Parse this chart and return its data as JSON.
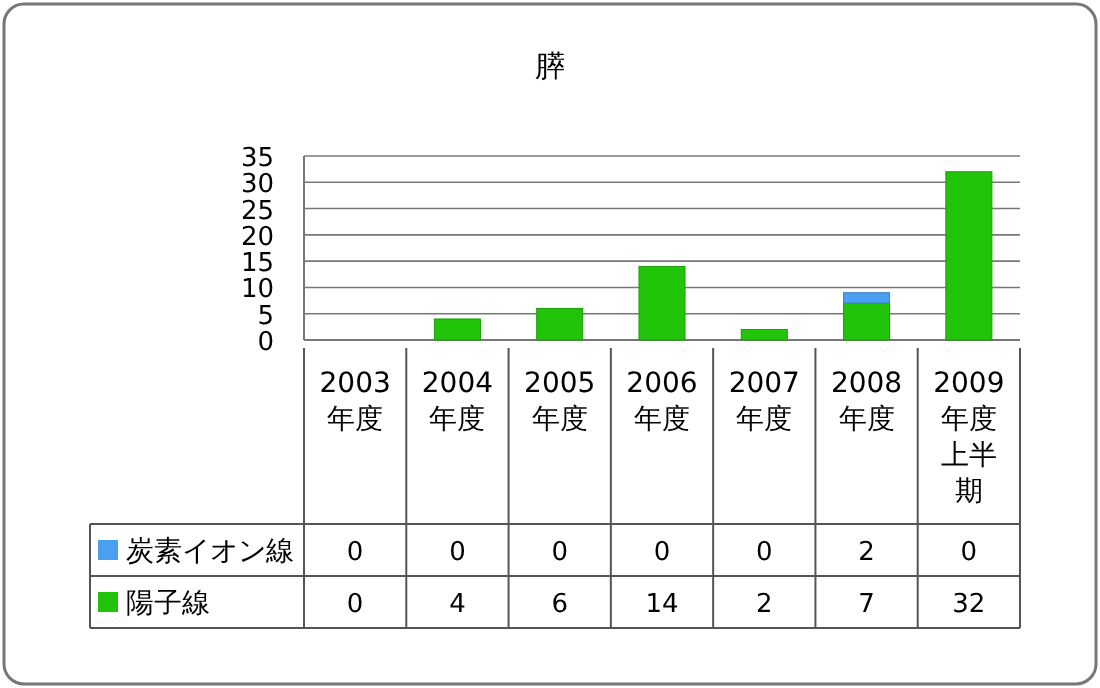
{
  "chart_data": {
    "type": "bar",
    "title": "膵",
    "stacked": true,
    "data_labels": true,
    "grid": "y",
    "legend": "bottom left",
    "categories": [
      "2003年度",
      "2004年度",
      "2005年度",
      "2006年度",
      "2007年度",
      "2008年度",
      "2009年度上半期"
    ],
    "ylim": [
      0,
      35
    ],
    "yticks": [
      0,
      5,
      10,
      15,
      20,
      25,
      30,
      35
    ],
    "series": [
      {
        "name": "陽子線",
        "color": "#22c40a",
        "values": [
          0,
          4,
          6,
          14,
          2,
          7,
          32
        ]
      },
      {
        "name": "炭素イオン線",
        "color": "#4a9ff0",
        "values": [
          0,
          0,
          0,
          0,
          0,
          2,
          0
        ]
      }
    ]
  }
}
